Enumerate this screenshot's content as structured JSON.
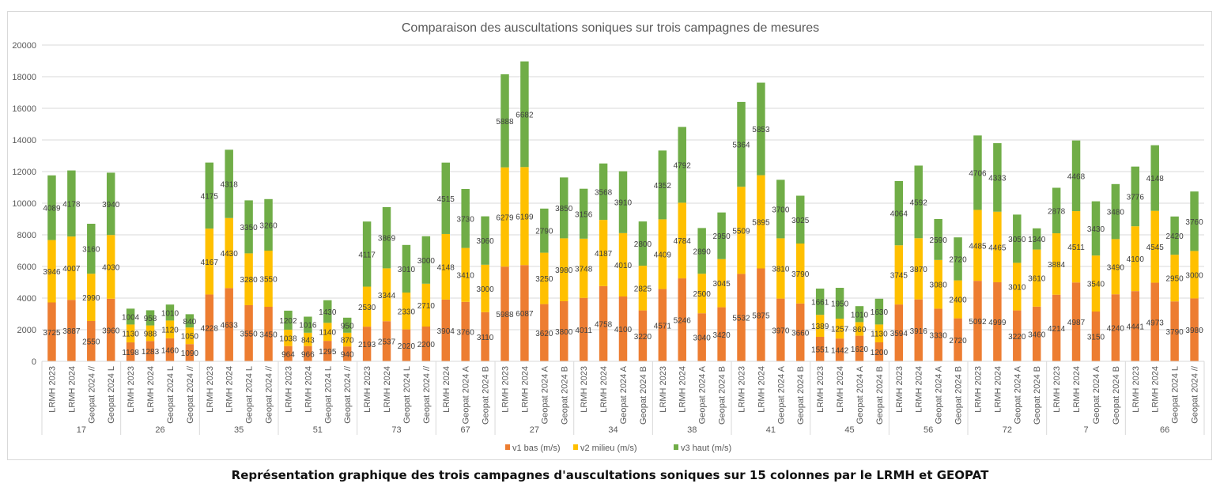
{
  "caption": "Représentation graphique des trois campagnes d'auscultations soniques sur 15 colonnes par le LRMH et GEOPAT",
  "chart_data": {
    "type": "bar",
    "stacked": true,
    "title": "Comparaison des auscultations soniques sur trois campagnes de mesures",
    "xlabel": "",
    "ylabel": "",
    "ylim": [
      0,
      20000
    ],
    "yticks": [
      0,
      2000,
      4000,
      6000,
      8000,
      10000,
      12000,
      14000,
      16000,
      18000,
      20000
    ],
    "grid": true,
    "legend_position": "bottom",
    "series_colors": [
      "#ED7D31",
      "#FFC000",
      "#70AD47"
    ],
    "series_names": [
      "v1 bas (m/s)",
      "v2 milieu (m/s)",
      "v3 haut (m/s)"
    ],
    "groups": [
      {
        "name": "17",
        "bars": [
          {
            "label": "LRMH 2023",
            "values": [
              3725,
              3946,
              4089
            ]
          },
          {
            "label": "LRMH 2024",
            "values": [
              3887,
              4007,
              4178
            ]
          },
          {
            "label": "Geopat 2024 //",
            "values": [
              2550,
              2990,
              3160
            ]
          },
          {
            "label": "Geopat 2024 L",
            "values": [
              3960,
              4030,
              3940
            ]
          }
        ]
      },
      {
        "name": "26",
        "bars": [
          {
            "label": "LRMH 2023",
            "values": [
              1198,
              1130,
              1004
            ]
          },
          {
            "label": "LRMH 2024",
            "values": [
              1283,
              988,
              958
            ]
          },
          {
            "label": "Geopat 2024 L",
            "values": [
              1460,
              1120,
              1010
            ]
          },
          {
            "label": "Geopat 2024 //",
            "values": [
              1090,
              1050,
              840
            ]
          }
        ]
      },
      {
        "name": "35",
        "bars": [
          {
            "label": "LRMH 2023",
            "values": [
              4228,
              4167,
              4175
            ]
          },
          {
            "label": "LRMH 2024",
            "values": [
              4633,
              4430,
              4318
            ]
          },
          {
            "label": "Geopat 2024 L",
            "values": [
              3550,
              3280,
              3350
            ]
          },
          {
            "label": "Geopat 2024 //",
            "values": [
              3450,
              3550,
              3260
            ]
          }
        ]
      },
      {
        "name": "51",
        "bars": [
          {
            "label": "LRMH 2023",
            "values": [
              964,
              1038,
              1202
            ]
          },
          {
            "label": "LRMH 2024",
            "values": [
              966,
              843,
              1016
            ]
          },
          {
            "label": "Geopat 2024 L",
            "values": [
              1295,
              1140,
              1430
            ]
          },
          {
            "label": "Geopat 2024 //",
            "values": [
              940,
              870,
              950
            ]
          }
        ]
      },
      {
        "name": "73",
        "bars": [
          {
            "label": "LRMH 2023",
            "values": [
              2193,
              2530,
              4117
            ]
          },
          {
            "label": "LRMH 2024",
            "values": [
              2537,
              3344,
              3869
            ]
          },
          {
            "label": "Geopat 2024 L",
            "values": [
              2020,
              2330,
              3010
            ]
          },
          {
            "label": "Geopat 2024 //",
            "values": [
              2200,
              2710,
              3000
            ]
          }
        ]
      },
      {
        "name": "67",
        "bars": [
          {
            "label": "LRMH 2024",
            "values": [
              3904,
              4148,
              4515
            ]
          },
          {
            "label": "Geopat 2024 A",
            "values": [
              3760,
              3410,
              3730
            ]
          },
          {
            "label": "Geopat 2024 B",
            "values": [
              3110,
              3000,
              3060
            ]
          }
        ]
      },
      {
        "name": "27",
        "bars": [
          {
            "label": "LRMH 2023",
            "values": [
              5988,
              6279,
              5888
            ]
          },
          {
            "label": "LRMH 2024",
            "values": [
              6087,
              6199,
              6682
            ]
          },
          {
            "label": "Geopat 2024 A",
            "values": [
              3620,
              3250,
              2790
            ]
          },
          {
            "label": "Geopat 2024 B",
            "values": [
              3800,
              3980,
              3850
            ]
          }
        ]
      },
      {
        "name": "34",
        "bars": [
          {
            "label": "LRMH 2023",
            "values": [
              4011,
              3748,
              3156
            ]
          },
          {
            "label": "LRMH 2024",
            "values": [
              4758,
              4187,
              3568
            ]
          },
          {
            "label": "Geopat 2024 A",
            "values": [
              4100,
              4010,
              3910
            ]
          },
          {
            "label": "Geopat 2024 B",
            "values": [
              3220,
              2825,
              2800
            ]
          }
        ]
      },
      {
        "name": "38",
        "bars": [
          {
            "label": "LRMH 2023",
            "values": [
              4571,
              4409,
              4352
            ]
          },
          {
            "label": "LRMH 2024",
            "values": [
              5246,
              4784,
              4792
            ]
          },
          {
            "label": "Geopat 2024 A",
            "values": [
              3040,
              2500,
              2890
            ]
          },
          {
            "label": "Geopat 2024 B",
            "values": [
              3420,
              3045,
              2950
            ]
          }
        ]
      },
      {
        "name": "41",
        "bars": [
          {
            "label": "LRMH 2023",
            "values": [
              5532,
              5509,
              5364
            ]
          },
          {
            "label": "LRMH 2024",
            "values": [
              5875,
              5895,
              5853
            ]
          },
          {
            "label": "Geopat 2024 A",
            "values": [
              3970,
              3810,
              3700
            ]
          },
          {
            "label": "Geopat 2024 B",
            "values": [
              3660,
              3790,
              3025
            ]
          }
        ]
      },
      {
        "name": "45",
        "bars": [
          {
            "label": "LRMH 2023",
            "values": [
              1551,
              1389,
              1661
            ]
          },
          {
            "label": "LRMH 2024",
            "values": [
              1442,
              1257,
              1950
            ]
          },
          {
            "label": "Geopat 2024 A",
            "values": [
              1620,
              860,
              1010
            ]
          },
          {
            "label": "Geopat 2024 B",
            "values": [
              1200,
              1130,
              1630
            ]
          }
        ]
      },
      {
        "name": "56",
        "bars": [
          {
            "label": "LRMH 2023",
            "values": [
              3594,
              3745,
              4064
            ]
          },
          {
            "label": "LRMH 2024",
            "values": [
              3916,
              3870,
              4592
            ]
          },
          {
            "label": "Geopat 2024 A",
            "values": [
              3330,
              3080,
              2590
            ]
          },
          {
            "label": "Geopat 2024 B",
            "values": [
              2720,
              2400,
              2720
            ]
          }
        ]
      },
      {
        "name": "72",
        "bars": [
          {
            "label": "LRMH 2023",
            "values": [
              5092,
              4485,
              4706
            ]
          },
          {
            "label": "LRMH 2024",
            "values": [
              4999,
              4465,
              4333
            ]
          },
          {
            "label": "Geopat 2024 A",
            "values": [
              3220,
              3010,
              3050
            ]
          },
          {
            "label": "Geopat 2024 B",
            "values": [
              3460,
              3610,
              1340
            ]
          }
        ]
      },
      {
        "name": "7",
        "bars": [
          {
            "label": "LRMH 2023",
            "values": [
              4214,
              3884,
              2878
            ]
          },
          {
            "label": "LRMH 2024",
            "values": [
              4987,
              4511,
              4468
            ]
          },
          {
            "label": "Geopat 2024 A",
            "values": [
              3150,
              3540,
              3430
            ]
          },
          {
            "label": "Geopat 2024 B",
            "values": [
              4240,
              3490,
              3480
            ]
          }
        ]
      },
      {
        "name": "66",
        "bars": [
          {
            "label": "LRMH 2023",
            "values": [
              4441,
              4100,
              3776
            ]
          },
          {
            "label": "LRMH 2024",
            "values": [
              4973,
              4545,
              4148
            ]
          },
          {
            "label": "Geopat 2024 L",
            "values": [
              3790,
              2950,
              2420
            ]
          },
          {
            "label": "Geopat 2024 //",
            "values": [
              3980,
              3000,
              3760
            ]
          }
        ]
      }
    ]
  }
}
